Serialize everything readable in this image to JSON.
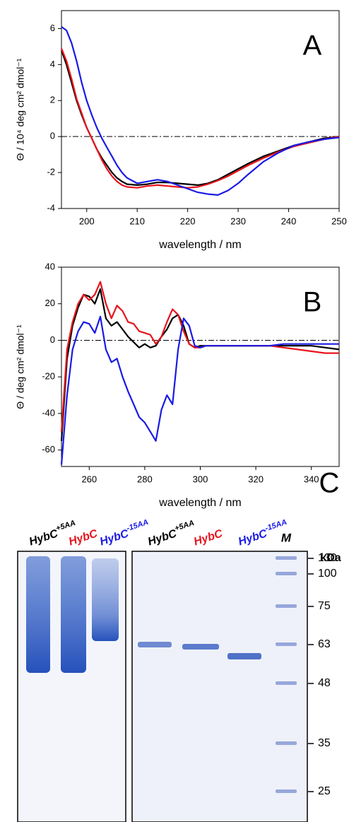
{
  "chart_data": [
    {
      "type": "line",
      "annotation": "A",
      "x_label": "wavelength / nm",
      "y_label": "Θ / 10⁴ deg cm² dmol⁻¹",
      "x": [
        195,
        196,
        197,
        198,
        199,
        200,
        201,
        202,
        203,
        204,
        205,
        206,
        207,
        208,
        210,
        212,
        214,
        216,
        218,
        220,
        222,
        224,
        226,
        228,
        230,
        232,
        235,
        238,
        241,
        244,
        247,
        250
      ],
      "series": [
        {
          "color": "#000000",
          "values": [
            4.8,
            4.0,
            3.0,
            2.0,
            1.2,
            0.5,
            -0.1,
            -0.7,
            -1.2,
            -1.6,
            -2.0,
            -2.3,
            -2.5,
            -2.65,
            -2.7,
            -2.65,
            -2.55,
            -2.55,
            -2.6,
            -2.65,
            -2.7,
            -2.6,
            -2.4,
            -2.1,
            -1.8,
            -1.5,
            -1.1,
            -0.8,
            -0.5,
            -0.3,
            -0.1,
            0
          ]
        },
        {
          "color": "#e8141c",
          "values": [
            4.9,
            4.2,
            3.2,
            2.1,
            1.3,
            0.5,
            -0.1,
            -0.7,
            -1.3,
            -1.8,
            -2.2,
            -2.5,
            -2.7,
            -2.8,
            -2.85,
            -2.75,
            -2.7,
            -2.75,
            -2.8,
            -2.85,
            -2.8,
            -2.65,
            -2.45,
            -2.2,
            -1.9,
            -1.6,
            -1.2,
            -0.85,
            -0.55,
            -0.35,
            -0.15,
            0
          ]
        },
        {
          "color": "#1a1ae6",
          "values": [
            6.1,
            5.9,
            5.2,
            4.2,
            3.0,
            2.0,
            1.2,
            0.5,
            -0.1,
            -0.6,
            -1.1,
            -1.6,
            -2.0,
            -2.3,
            -2.6,
            -2.5,
            -2.4,
            -2.5,
            -2.7,
            -2.9,
            -3.1,
            -3.2,
            -3.25,
            -3.0,
            -2.6,
            -2.1,
            -1.4,
            -0.9,
            -0.5,
            -0.3,
            -0.15,
            -0.05
          ]
        }
      ],
      "xlim": [
        195,
        250
      ],
      "xticks": [
        200,
        210,
        220,
        230,
        240,
        250
      ],
      "ylim": [
        -4,
        7
      ],
      "yticks": [
        -4,
        -2,
        0,
        2,
        4,
        6
      ],
      "zero_line": true
    },
    {
      "type": "line",
      "annotation": "B",
      "x_label": "wavelength / nm",
      "y_label": "Θ / deg cm² dmol⁻¹",
      "x": [
        250,
        252,
        254,
        256,
        258,
        260,
        262,
        264,
        266,
        268,
        270,
        272,
        274,
        276,
        278,
        280,
        282,
        284,
        286,
        288,
        290,
        292,
        294,
        296,
        298,
        300,
        302,
        305,
        310,
        315,
        320,
        325,
        330,
        335,
        340,
        345,
        350
      ],
      "series": [
        {
          "color": "#000000",
          "values": [
            -55,
            -10,
            8,
            18,
            25,
            24,
            20,
            28,
            12,
            8,
            10,
            6,
            2,
            -1,
            -4,
            -2,
            -4,
            -3,
            2,
            6,
            12,
            14,
            8,
            -2,
            -4,
            -3,
            -3,
            -3,
            -3,
            -3,
            -3,
            -3,
            -3,
            -3,
            -3,
            -4,
            -5
          ]
        },
        {
          "color": "#e8141c",
          "values": [
            -50,
            -5,
            10,
            20,
            25,
            22,
            25,
            32,
            20,
            12,
            19,
            16,
            10,
            9,
            5,
            4,
            3,
            -2,
            2,
            10,
            17,
            14,
            5,
            -2,
            -4,
            -4,
            -3,
            -3,
            -3,
            -3,
            -3,
            -3,
            -4,
            -5,
            -6,
            -7,
            -7
          ]
        },
        {
          "color": "#1a1ae6",
          "values": [
            -68,
            -30,
            -5,
            5,
            10,
            9,
            4,
            13,
            -5,
            -12,
            -10,
            -20,
            -28,
            -35,
            -42,
            -45,
            -50,
            -55,
            -38,
            -30,
            -35,
            -5,
            12,
            8,
            -3,
            -4,
            -3,
            -3,
            -3,
            -3,
            -3,
            -3,
            -2,
            -2,
            -2,
            -2,
            -2
          ]
        }
      ],
      "xlim": [
        250,
        350
      ],
      "xticks": [
        260,
        280,
        300,
        320,
        340
      ],
      "ylim": [
        -69,
        40
      ],
      "yticks": [
        -60,
        -40,
        -20,
        0,
        20,
        40
      ],
      "zero_line": true
    }
  ],
  "gel": {
    "label": "C",
    "unit": "kDa",
    "marker_lane": "M",
    "lanes": [
      {
        "name": "HybC",
        "superscript": "+5AA",
        "color": "#000000"
      },
      {
        "name": "HybC",
        "color": "#e8141c"
      },
      {
        "name": "HybC",
        "superscript": "-15AA",
        "color": "#1a1ae6"
      },
      {
        "name": "HybC",
        "superscript": "+5AA",
        "color": "#000000"
      },
      {
        "name": "HybC",
        "color": "#e8141c"
      },
      {
        "name": "HybC",
        "superscript": "-15AA",
        "color": "#1a1ae6"
      }
    ],
    "markers": [
      130,
      100,
      75,
      63,
      48,
      35,
      25
    ]
  }
}
